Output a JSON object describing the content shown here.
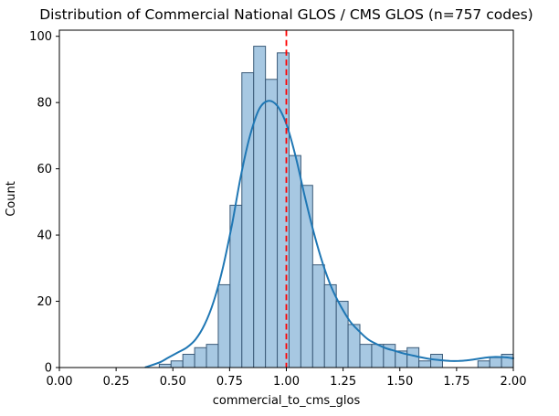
{
  "chart_data": {
    "type": "bar",
    "subtype": "histogram-with-kde",
    "title": "Distribution of Commercial National GLOS / CMS GLOS (n=757 codes)",
    "xlabel": "commercial_to_cms_glos",
    "ylabel": "Count",
    "xlim": [
      0.0,
      2.0
    ],
    "ylim": [
      0.0,
      101.85
    ],
    "grid": false,
    "legend_position": "none",
    "xticks": {
      "values": [
        0.0,
        0.25,
        0.5,
        0.75,
        1.0,
        1.25,
        1.5,
        1.75,
        2.0
      ],
      "labels": [
        "0.00",
        "0.25",
        "0.50",
        "0.75",
        "1.00",
        "1.25",
        "1.50",
        "1.75",
        "2.00"
      ]
    },
    "yticks": {
      "values": [
        0,
        20,
        40,
        60,
        80,
        100
      ],
      "labels": [
        "0",
        "20",
        "40",
        "60",
        "80",
        "100"
      ]
    },
    "bins": {
      "start": 0.44,
      "width": 0.052,
      "counts": [
        1,
        2,
        4,
        6,
        7,
        25,
        49,
        89,
        97,
        87,
        95,
        64,
        55,
        31,
        25,
        20,
        13,
        7,
        7,
        7,
        5,
        6,
        2,
        4,
        0,
        0,
        0,
        2,
        3,
        4
      ]
    },
    "kde": {
      "name": "kde-density-curve",
      "x": [
        0.38,
        0.44,
        0.48,
        0.52,
        0.56,
        0.6,
        0.64,
        0.68,
        0.72,
        0.76,
        0.8,
        0.84,
        0.88,
        0.92,
        0.96,
        1.0,
        1.04,
        1.08,
        1.12,
        1.16,
        1.2,
        1.24,
        1.28,
        1.32,
        1.36,
        1.4,
        1.44,
        1.48,
        1.52,
        1.56,
        1.6,
        1.64,
        1.68,
        1.72,
        1.76,
        1.8,
        1.84,
        1.88,
        1.92,
        1.96,
        2.0
      ],
      "y": [
        0.1,
        1.5,
        3.0,
        4.5,
        6.0,
        8.5,
        13.0,
        20.0,
        30.0,
        43.0,
        58.0,
        70.0,
        78.0,
        80.5,
        79.0,
        73.5,
        64.0,
        52.0,
        41.0,
        31.5,
        24.0,
        18.5,
        14.0,
        11.0,
        8.5,
        7.0,
        5.8,
        5.0,
        4.2,
        3.6,
        3.0,
        2.5,
        2.2,
        2.0,
        2.0,
        2.2,
        2.6,
        3.0,
        3.2,
        3.1,
        2.8
      ]
    },
    "vline": {
      "x": 1.0,
      "color": "#ff0000",
      "style": "dashed"
    },
    "colors": {
      "bar_fill": "#a7c8e2",
      "bar_edge": "#3a5a78",
      "kde_line": "#1f77b4",
      "spine": "#000000",
      "background": "#ffffff"
    }
  }
}
